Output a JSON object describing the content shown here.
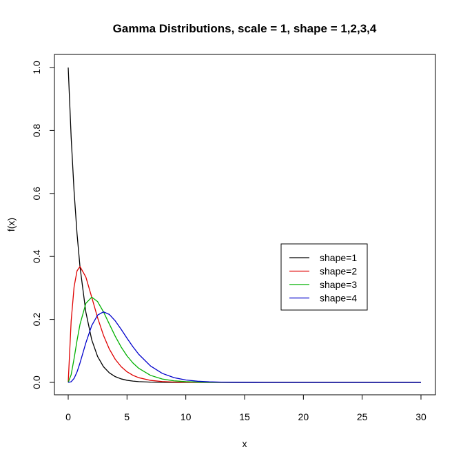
{
  "chart_data": {
    "type": "line",
    "title": "Gamma Distributions, scale = 1, shape = 1,2,3,4",
    "xlabel": "x",
    "ylabel": "f(x)",
    "xlim": [
      0,
      30
    ],
    "ylim": [
      0,
      1
    ],
    "x_ticks": [
      "0",
      "5",
      "10",
      "15",
      "20",
      "25",
      "30"
    ],
    "y_ticks": [
      "0.0",
      "0.2",
      "0.4",
      "0.6",
      "0.8",
      "1.0"
    ],
    "grid": false,
    "legend_position": "center-right",
    "x": [
      0,
      0.25,
      0.5,
      0.75,
      1,
      1.5,
      2,
      2.5,
      3,
      3.5,
      4,
      4.5,
      5,
      5.5,
      6,
      7,
      8,
      9,
      10,
      11,
      12,
      13,
      14,
      16,
      18,
      20,
      22,
      24,
      26,
      28,
      30
    ],
    "series": [
      {
        "name": "shape=1",
        "color": "#000000",
        "values": [
          1.0,
          0.7788,
          0.6065,
          0.4724,
          0.3679,
          0.2231,
          0.1353,
          0.0821,
          0.0498,
          0.0302,
          0.0183,
          0.0111,
          0.0067,
          0.0041,
          0.0025,
          0.0009,
          0.0003,
          0.0001,
          0.0,
          0.0,
          0.0,
          0.0,
          0.0,
          0.0,
          0.0,
          0.0,
          0.0,
          0.0,
          0.0,
          0.0,
          0.0
        ]
      },
      {
        "name": "shape=2",
        "color": "#df0000",
        "values": [
          0.0,
          0.1947,
          0.3033,
          0.3543,
          0.3679,
          0.3347,
          0.2707,
          0.2052,
          0.1494,
          0.1057,
          0.0733,
          0.05,
          0.0337,
          0.0225,
          0.0149,
          0.0064,
          0.0027,
          0.0011,
          0.0005,
          0.0002,
          0.0001,
          0.0,
          0.0,
          0.0,
          0.0,
          0.0,
          0.0,
          0.0,
          0.0,
          0.0,
          0.0
        ]
      },
      {
        "name": "shape=3",
        "color": "#00b000",
        "values": [
          0.0,
          0.0243,
          0.0758,
          0.1329,
          0.1839,
          0.251,
          0.2707,
          0.2565,
          0.224,
          0.185,
          0.1465,
          0.1125,
          0.0842,
          0.0618,
          0.0446,
          0.0223,
          0.0107,
          0.005,
          0.0023,
          0.001,
          0.0004,
          0.0002,
          0.0001,
          0.0,
          0.0,
          0.0,
          0.0,
          0.0,
          0.0,
          0.0,
          0.0
        ]
      },
      {
        "name": "shape=4",
        "color": "#0000cc",
        "values": [
          0.0,
          0.002,
          0.0126,
          0.0332,
          0.0613,
          0.1255,
          0.1804,
          0.2138,
          0.224,
          0.2158,
          0.1954,
          0.1687,
          0.1404,
          0.1133,
          0.0892,
          0.0521,
          0.0286,
          0.015,
          0.0076,
          0.0037,
          0.0018,
          0.0008,
          0.0004,
          0.0001,
          0.0,
          0.0,
          0.0,
          0.0,
          0.0,
          0.0,
          0.0
        ]
      }
    ]
  }
}
